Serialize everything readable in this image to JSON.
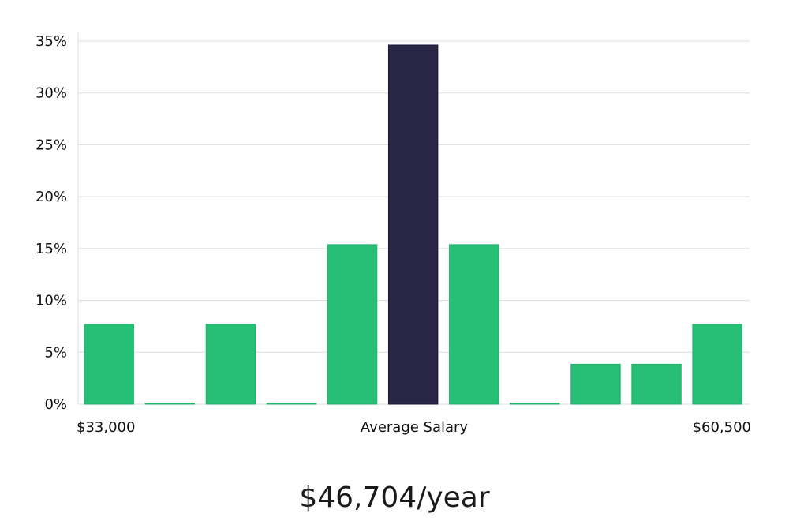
{
  "chart_data": {
    "type": "bar",
    "y_ticks": [
      "0%",
      "5%",
      "10%",
      "15%",
      "20%",
      "25%",
      "30%",
      "35%"
    ],
    "ylim": [
      0,
      35
    ],
    "values": [
      7.69,
      0,
      7.69,
      0,
      15.38,
      34.62,
      15.38,
      0,
      3.85,
      3.85,
      7.69
    ],
    "highlight_index": 5,
    "x_labels": {
      "left": "$33,000",
      "center": "Average Salary",
      "right": "$60,500"
    },
    "grid": true,
    "colors": {
      "bar": "#27be76",
      "highlight": "#282545",
      "grid": "#dddddd"
    }
  },
  "salary_text": "$46,704/year"
}
